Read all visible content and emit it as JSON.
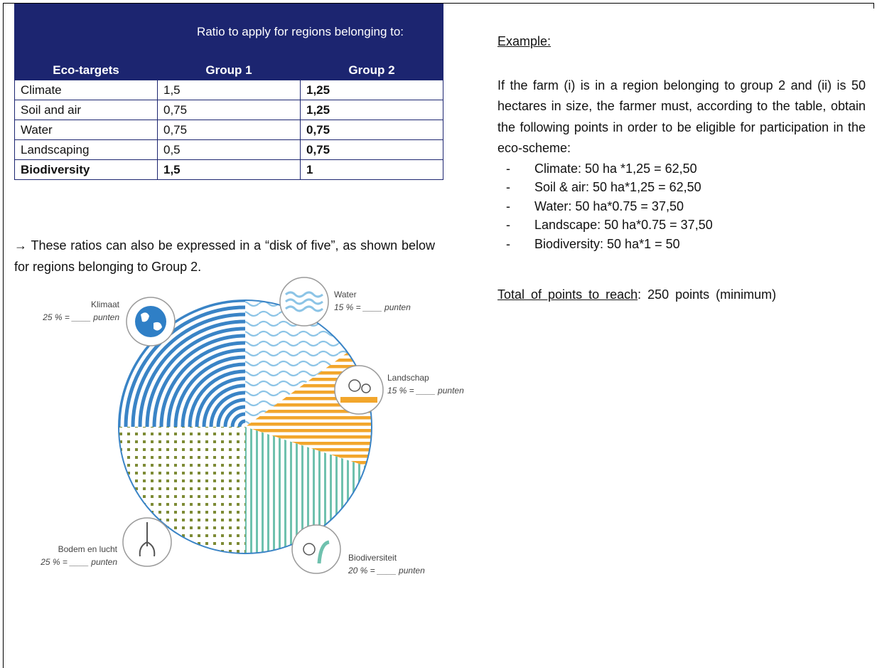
{
  "table": {
    "span_header": "Ratio to apply for regions belonging to:",
    "columns": [
      "Eco-targets",
      "Group 1",
      "Group 2"
    ],
    "rows": [
      [
        "Climate",
        "1,5",
        "1,25"
      ],
      [
        "Soil and air",
        "0,75",
        "1,25"
      ],
      [
        "Water",
        "0,75",
        "0,75"
      ],
      [
        "Landscaping",
        "0,5",
        "0,75"
      ],
      [
        "Biodiversity",
        "1,5",
        "1"
      ]
    ]
  },
  "note": "→ These ratios can also be expressed in a “disk of five”, as shown below for regions belonging to Group 2.",
  "diagram": {
    "segments": [
      {
        "name": "Water",
        "label": "15 % = ____ punten"
      },
      {
        "name": "Landschap",
        "label": "15 % = ____ punten"
      },
      {
        "name": "Biodiversiteit",
        "label": "20 % = ____ punten"
      },
      {
        "name": "Bodem en lucht",
        "label": "25 % = ____ punten"
      },
      {
        "name": "Klimaat",
        "label": "25 % = ____ punten"
      }
    ]
  },
  "example": {
    "heading": "Example:",
    "paragraph": "If the farm (i) is in a region belonging to group 2 and (ii) is 50 hectares in size, the farmer must, according to the table, obtain the following points in order to be eligible for participation in the eco-scheme:",
    "bullets": [
      "Climate: 50 ha *1,25 = 62,50",
      "Soil & air: 50 ha*1,25 = 62,50",
      "Water: 50 ha*0.75 = 37,50",
      "Landscape: 50 ha*0.75 = 37,50",
      "Biodiversity: 50 ha*1 = 50"
    ],
    "total_label": "Total of points to reach",
    "total_text": ": 250 points (minimum)"
  }
}
